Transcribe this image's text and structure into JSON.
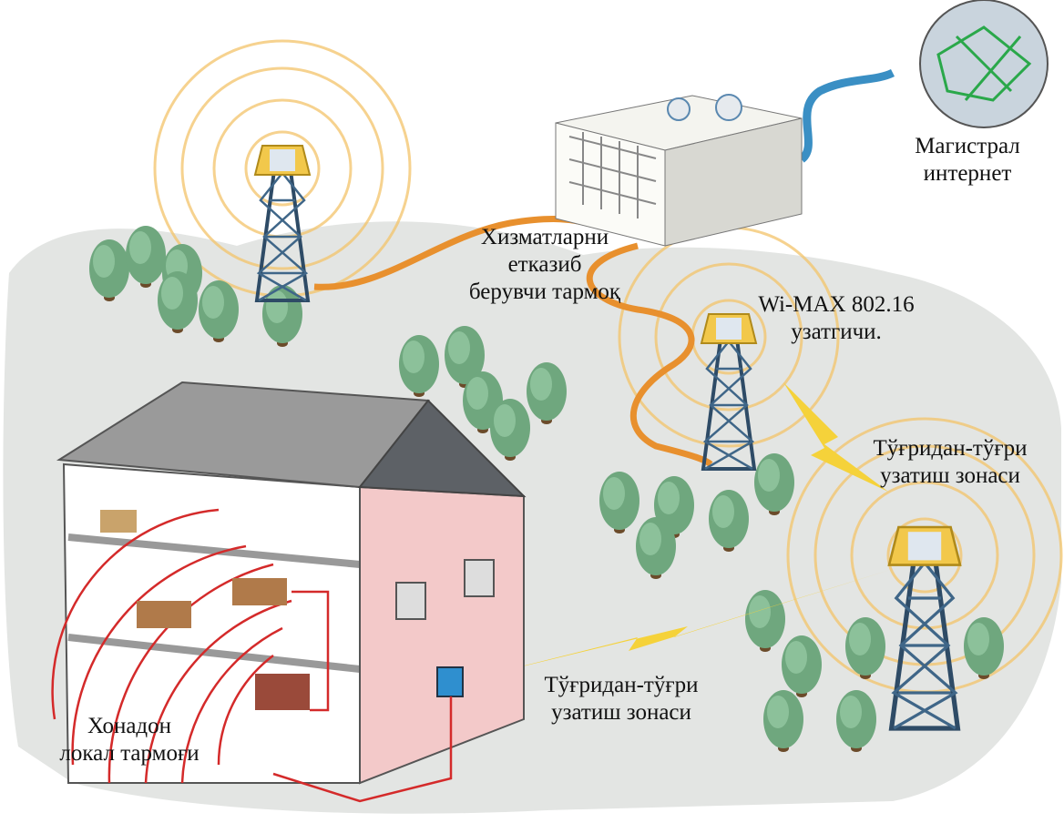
{
  "labels": [
    {
      "lines": [
        "Магистрал",
        "интернет"
      ]
    },
    {
      "lines": [
        "Хизматларни",
        "етказиб",
        "берувчи тармоқ"
      ]
    },
    {
      "lines": [
        "Wi-MAX 802.16",
        "узатгичи."
      ]
    },
    {
      "lines": [
        "Тўғридан-тўғри",
        "узатиш зонаси"
      ]
    },
    {
      "lines": [
        "Тўғридан-тўғри",
        "узатиш зонаси"
      ]
    },
    {
      "lines": [
        "Хонадон",
        "локал тармоғи"
      ]
    }
  ]
}
